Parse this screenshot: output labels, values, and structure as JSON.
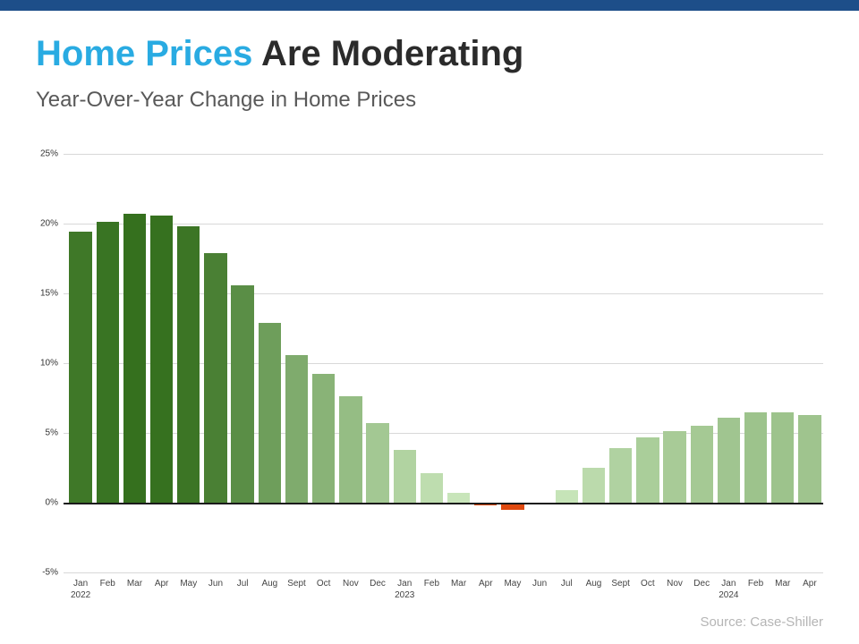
{
  "header": {
    "title_highlight": "Home Prices",
    "title_rest": " Are Moderating",
    "subtitle": "Year-Over-Year Change in Home Prices"
  },
  "colors": {
    "top_bar": "#1d4e89",
    "accent_blue": "#29abe2",
    "title_dark": "#2b2b2b",
    "bar_green_dark": "#35701e",
    "bar_green_light": "#cde9bf",
    "bar_negative": "#e0490f",
    "grid": "#d8d8d8",
    "axis": "#1a1a1a"
  },
  "chart_data": {
    "type": "bar",
    "title": "Year-Over-Year Change in Home Prices",
    "xlabel": "",
    "ylabel": "",
    "ylim": [
      -5,
      25
    ],
    "grid": true,
    "yticks": [
      {
        "value": 25,
        "label": "25%"
      },
      {
        "value": 20,
        "label": "20%"
      },
      {
        "value": 15,
        "label": "15%"
      },
      {
        "value": 10,
        "label": "10%"
      },
      {
        "value": 5,
        "label": "5%"
      },
      {
        "value": 0,
        "label": "0%"
      },
      {
        "value": -5,
        "label": "-5%"
      }
    ],
    "x": [
      {
        "month": "Jan",
        "year": "2022"
      },
      {
        "month": "Feb"
      },
      {
        "month": "Mar"
      },
      {
        "month": "Apr"
      },
      {
        "month": "May"
      },
      {
        "month": "Jun"
      },
      {
        "month": "Jul"
      },
      {
        "month": "Aug"
      },
      {
        "month": "Sept"
      },
      {
        "month": "Oct"
      },
      {
        "month": "Nov"
      },
      {
        "month": "Dec"
      },
      {
        "month": "Jan",
        "year": "2023"
      },
      {
        "month": "Feb"
      },
      {
        "month": "Mar"
      },
      {
        "month": "Apr"
      },
      {
        "month": "May"
      },
      {
        "month": "Jun"
      },
      {
        "month": "Jul"
      },
      {
        "month": "Aug"
      },
      {
        "month": "Sept"
      },
      {
        "month": "Oct"
      },
      {
        "month": "Nov"
      },
      {
        "month": "Dec"
      },
      {
        "month": "Jan",
        "year": "2024"
      },
      {
        "month": "Feb"
      },
      {
        "month": "Mar"
      },
      {
        "month": "Apr"
      }
    ],
    "values": [
      19.4,
      20.1,
      20.7,
      20.6,
      19.8,
      17.9,
      15.6,
      12.9,
      10.6,
      9.2,
      7.6,
      5.7,
      3.8,
      2.1,
      0.7,
      -0.2,
      -0.5,
      0.0,
      0.9,
      2.5,
      3.9,
      4.7,
      5.1,
      5.5,
      6.1,
      6.5,
      6.5,
      6.3
    ]
  },
  "footer": {
    "source": "Source: Case-Shiller"
  }
}
